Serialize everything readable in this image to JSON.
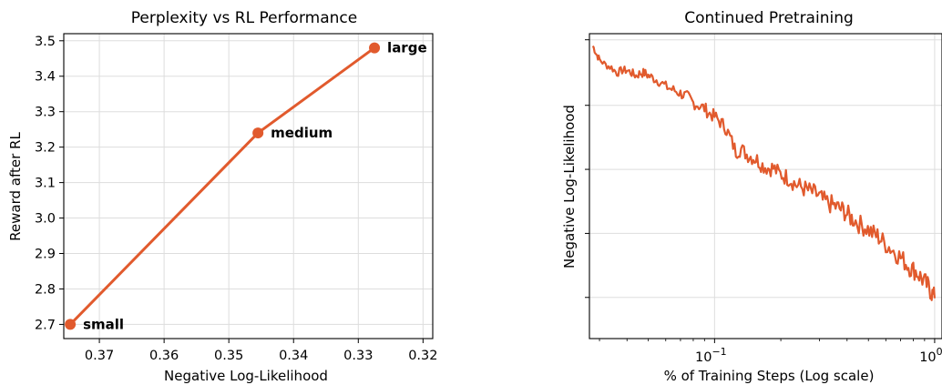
{
  "chart_data": [
    {
      "type": "line",
      "title": "Perplexity vs RL Performance",
      "xlabel": "Negative Log-Likelihood",
      "ylabel": "Reward after RL",
      "x_inverted": true,
      "xlim": [
        0.3755,
        0.3185
      ],
      "ylim": [
        2.66,
        3.52
      ],
      "xticks": [
        0.37,
        0.36,
        0.35,
        0.34,
        0.33,
        0.32
      ],
      "xtick_labels": [
        "0.37",
        "0.36",
        "0.35",
        "0.34",
        "0.33",
        "0.32"
      ],
      "yticks": [
        2.7,
        2.8,
        2.9,
        3.0,
        3.1,
        3.2,
        3.3,
        3.4,
        3.5
      ],
      "ytick_labels": [
        "2.7",
        "2.8",
        "2.9",
        "3.0",
        "3.1",
        "3.2",
        "3.3",
        "3.4",
        "3.5"
      ],
      "grid": true,
      "color": "#e15a2d",
      "points": [
        {
          "label": "small",
          "x": 0.3745,
          "y": 2.7
        },
        {
          "label": "medium",
          "x": 0.3455,
          "y": 3.24
        },
        {
          "label": "large",
          "x": 0.3275,
          "y": 3.48
        }
      ]
    },
    {
      "type": "line",
      "title": "Continued Pretraining",
      "xlabel": "% of Training Steps (Log scale)",
      "ylabel": "Negative Log-Likelihood",
      "x_scale": "log",
      "xlim": [
        0.027,
        1.08
      ],
      "ylim": [
        0,
        1
      ],
      "xticks": [
        0.1,
        1
      ],
      "xtick_labels": [
        {
          "base": "10",
          "exp": "−1"
        },
        {
          "base": "10",
          "exp": "0"
        }
      ],
      "ytick_labels_visible": false,
      "grid": true,
      "color": "#e15a2d",
      "x": [
        0.028,
        0.029,
        0.03,
        0.032,
        0.034,
        0.036,
        0.038,
        0.04,
        0.042,
        0.044,
        0.046,
        0.048,
        0.05,
        0.053,
        0.056,
        0.06,
        0.064,
        0.068,
        0.072,
        0.076,
        0.08,
        0.085,
        0.09,
        0.095,
        0.1,
        0.106,
        0.112,
        0.118,
        0.125,
        0.132,
        0.14,
        0.148,
        0.156,
        0.165,
        0.175,
        0.185,
        0.196,
        0.208,
        0.22,
        0.233,
        0.247,
        0.262,
        0.278,
        0.295,
        0.31,
        0.33,
        0.35,
        0.37,
        0.39,
        0.41,
        0.43,
        0.46,
        0.49,
        0.52,
        0.55,
        0.58,
        0.62,
        0.66,
        0.7,
        0.74,
        0.78,
        0.82,
        0.86,
        0.9,
        0.94,
        0.97,
        1.0
      ],
      "values": [
        1.0,
        0.97,
        0.95,
        0.93,
        0.92,
        0.9,
        0.91,
        0.91,
        0.9,
        0.89,
        0.9,
        0.9,
        0.89,
        0.88,
        0.87,
        0.85,
        0.84,
        0.83,
        0.82,
        0.81,
        0.79,
        0.78,
        0.77,
        0.75,
        0.74,
        0.72,
        0.7,
        0.66,
        0.61,
        0.62,
        0.6,
        0.59,
        0.58,
        0.56,
        0.55,
        0.55,
        0.53,
        0.52,
        0.51,
        0.49,
        0.48,
        0.47,
        0.46,
        0.45,
        0.43,
        0.42,
        0.41,
        0.4,
        0.39,
        0.37,
        0.36,
        0.34,
        0.33,
        0.31,
        0.3,
        0.28,
        0.26,
        0.24,
        0.22,
        0.2,
        0.18,
        0.17,
        0.15,
        0.13,
        0.11,
        0.09,
        0.07
      ]
    }
  ]
}
